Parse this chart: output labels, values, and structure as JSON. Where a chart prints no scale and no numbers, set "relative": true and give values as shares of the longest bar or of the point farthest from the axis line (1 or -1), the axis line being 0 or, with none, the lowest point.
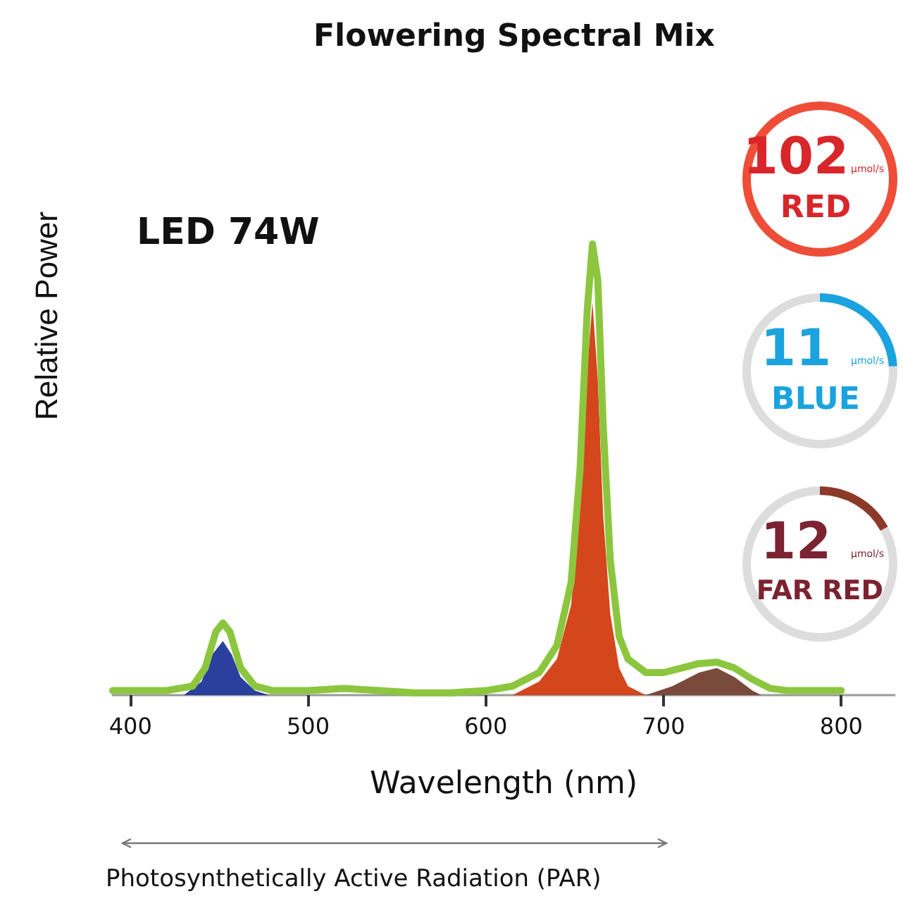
{
  "chart_data": [
    {
      "type": "line",
      "title": "Flowering Spectral Mix",
      "xlabel": "Wavelength (nm)",
      "ylabel": "Relative Power",
      "relative": true,
      "xlim": [
        390,
        830
      ],
      "xticks": [
        400,
        500,
        600,
        700,
        800
      ],
      "grid": false,
      "marker": "none",
      "annotations": [
        "LED 74W",
        "Photosynthetically Active Radiation (PAR)"
      ],
      "series": [
        {
          "type": "area",
          "color": "#2b3f9e",
          "x": [
            430,
            440,
            446,
            452,
            457,
            462,
            470,
            478
          ],
          "values": [
            0,
            0.03,
            0.09,
            0.12,
            0.09,
            0.04,
            0.01,
            0
          ]
        },
        {
          "type": "area",
          "color": "#d4461c",
          "x": [
            615,
            630,
            640,
            648,
            653,
            657,
            660,
            663,
            666,
            670,
            675,
            680,
            690
          ],
          "values": [
            0,
            0.03,
            0.08,
            0.2,
            0.42,
            0.72,
            0.87,
            0.7,
            0.4,
            0.18,
            0.06,
            0.02,
            0
          ]
        },
        {
          "type": "area",
          "color": "#7a4a3a",
          "x": [
            690,
            705,
            720,
            730,
            740,
            750,
            755
          ],
          "values": [
            0,
            0.02,
            0.05,
            0.06,
            0.04,
            0.01,
            0
          ]
        },
        {
          "type": "line",
          "color": "#8cc63f",
          "x": [
            390,
            420,
            435,
            442,
            448,
            452,
            456,
            462,
            470,
            480,
            500,
            520,
            540,
            560,
            580,
            600,
            615,
            630,
            640,
            648,
            653,
            657,
            660,
            663,
            666,
            670,
            675,
            680,
            690,
            700,
            710,
            720,
            730,
            740,
            750,
            760,
            770,
            800
          ],
          "values": [
            0.01,
            0.01,
            0.02,
            0.06,
            0.14,
            0.16,
            0.14,
            0.06,
            0.02,
            0.01,
            0.01,
            0.015,
            0.01,
            0.005,
            0.005,
            0.01,
            0.02,
            0.05,
            0.11,
            0.25,
            0.5,
            0.85,
            1.0,
            0.92,
            0.6,
            0.3,
            0.13,
            0.08,
            0.05,
            0.05,
            0.06,
            0.07,
            0.073,
            0.06,
            0.035,
            0.015,
            0.01,
            0.01
          ]
        }
      ]
    },
    {
      "type": "other",
      "annotations": [
        "102",
        "µmol/s",
        "RED",
        "11",
        "µmol/s",
        "BLUE",
        "12",
        "µmol/s",
        "FAR RED"
      ]
    }
  ]
}
